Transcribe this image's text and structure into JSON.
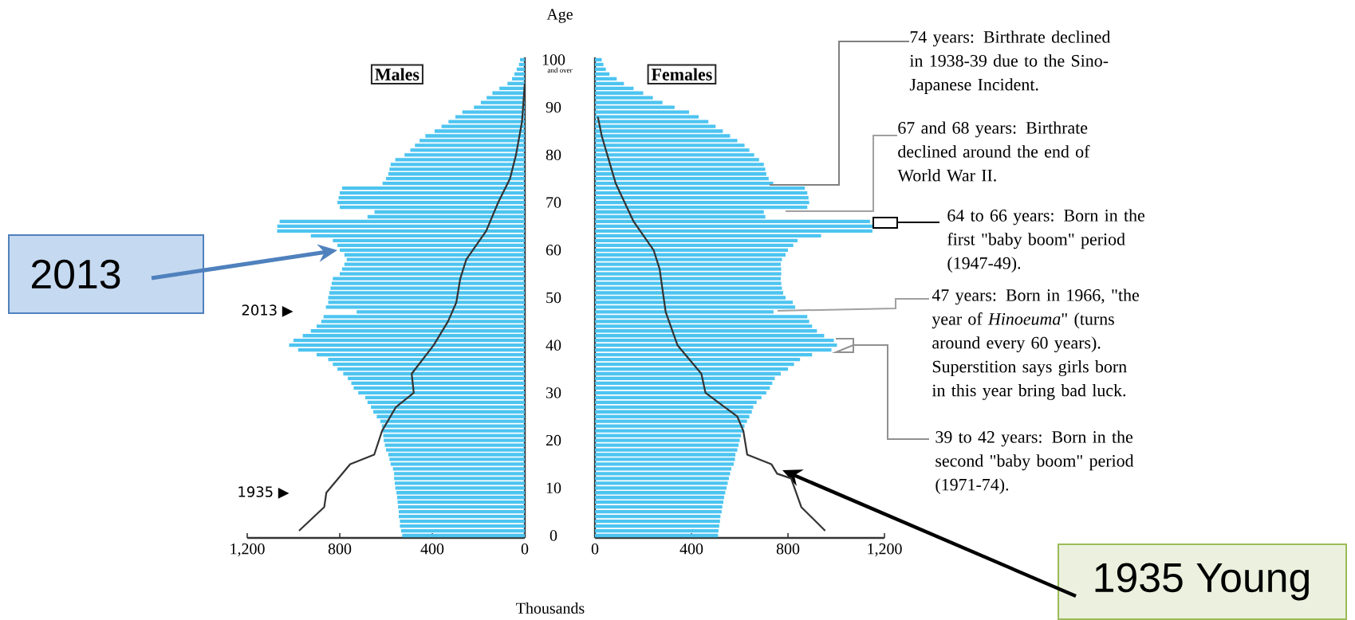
{
  "chart_data": [
    {
      "type": "bar",
      "orientation": "horizontal",
      "title": "Males",
      "ylabel": "Age",
      "xlabel": "Thousands",
      "x": [
        0,
        1,
        2,
        3,
        4,
        5,
        6,
        7,
        8,
        9,
        10,
        11,
        12,
        13,
        14,
        15,
        16,
        17,
        18,
        19,
        20,
        21,
        22,
        23,
        24,
        25,
        26,
        27,
        28,
        29,
        30,
        31,
        32,
        33,
        34,
        35,
        36,
        37,
        38,
        39,
        40,
        41,
        42,
        43,
        44,
        45,
        46,
        47,
        48,
        49,
        50,
        51,
        52,
        53,
        54,
        55,
        56,
        57,
        58,
        59,
        60,
        61,
        62,
        63,
        64,
        65,
        66,
        67,
        68,
        69,
        70,
        71,
        72,
        73,
        74,
        75,
        76,
        77,
        78,
        79,
        80,
        81,
        82,
        83,
        84,
        85,
        86,
        87,
        88,
        89,
        90,
        91,
        92,
        93,
        94,
        95,
        96,
        97,
        98,
        99,
        100
      ],
      "xlim": [
        1200,
        0
      ],
      "xticks": [
        {
          "value": 1200,
          "label": "1,200"
        },
        800,
        400,
        0
      ],
      "ylim": [
        -0.5,
        100.5
      ],
      "yticks": [
        0,
        10,
        20,
        30,
        40,
        50,
        60,
        70,
        80,
        90,
        100
      ],
      "series": [
        {
          "color": "#4dc4f0",
          "values": [
            530,
            535,
            540,
            540,
            545,
            545,
            548,
            550,
            552,
            555,
            560,
            562,
            565,
            565,
            570,
            580,
            585,
            590,
            600,
            605,
            610,
            612,
            615,
            618,
            625,
            640,
            655,
            665,
            680,
            690,
            720,
            740,
            750,
            765,
            785,
            810,
            830,
            850,
            900,
            980,
            1019,
            1000,
            960,
            925,
            900,
            880,
            870,
            727,
            860,
            850,
            850,
            845,
            840,
            835,
            830,
            800,
            790,
            780,
            770,
            780,
            800,
            810,
            830,
            925,
            1071,
            1070,
            1060,
            680,
            650,
            800,
            810,
            805,
            800,
            790,
            615,
            600,
            590,
            585,
            580,
            560,
            520,
            495,
            475,
            455,
            430,
            390,
            360,
            330,
            300,
            270,
            220,
            190,
            165,
            140,
            110,
            75,
            55,
            45,
            35,
            25,
            20
          ]
        },
        {
          "type": "line",
          "color": "#333333",
          "x": [
            1,
            6,
            9,
            15,
            17,
            22,
            27,
            30,
            34,
            40,
            45,
            49,
            54,
            58,
            64,
            70,
            75,
            80,
            87,
            95
          ],
          "values": [
            976,
            867,
            858,
            755,
            651,
            617,
            557,
            480,
            489,
            394,
            332,
            296,
            279,
            253,
            167,
            115,
            64,
            38,
            12,
            0
          ]
        }
      ],
      "annotations": [
        "2013 ▶",
        "1935 ▶",
        "2013",
        "1935 Young",
        "and over"
      ]
    },
    {
      "type": "bar",
      "orientation": "horizontal",
      "title": "Females",
      "tick_labels": "x",
      "x": [
        0,
        1,
        2,
        3,
        4,
        5,
        6,
        7,
        8,
        9,
        10,
        11,
        12,
        13,
        14,
        15,
        16,
        17,
        18,
        19,
        20,
        21,
        22,
        23,
        24,
        25,
        26,
        27,
        28,
        29,
        30,
        31,
        32,
        33,
        34,
        35,
        36,
        37,
        38,
        39,
        40,
        41,
        42,
        43,
        44,
        45,
        46,
        47,
        48,
        49,
        50,
        51,
        52,
        53,
        54,
        55,
        56,
        57,
        58,
        59,
        60,
        61,
        62,
        63,
        64,
        65,
        66,
        67,
        68,
        69,
        70,
        71,
        72,
        73,
        74,
        75,
        76,
        77,
        78,
        79,
        80,
        81,
        82,
        83,
        84,
        85,
        86,
        87,
        88,
        89,
        90,
        91,
        92,
        93,
        94,
        95,
        96,
        97,
        98,
        99,
        100
      ],
      "xlim": [
        0,
        1200
      ],
      "xticks": [
        0,
        400,
        800,
        {
          "value": 1200,
          "label": "1,200"
        }
      ],
      "ylim": [
        -0.5,
        100.5
      ],
      "yticks": [
        0,
        10,
        20,
        30,
        40,
        50,
        60,
        70,
        80,
        90,
        100
      ],
      "series": [
        {
          "color": "#4dc4f0",
          "values": [
            510,
            512,
            515,
            518,
            520,
            525,
            528,
            532,
            535,
            540,
            545,
            550,
            555,
            560,
            565,
            575,
            580,
            582,
            590,
            595,
            600,
            605,
            615,
            620,
            630,
            640,
            650,
            656,
            670,
            690,
            710,
            725,
            735,
            745,
            770,
            800,
            825,
            850,
            900,
            980,
            1003,
            990,
            950,
            920,
            900,
            888,
            880,
            740,
            830,
            820,
            790,
            780,
            775,
            772,
            770,
            772,
            772,
            770,
            775,
            790,
            800,
            822,
            840,
            937,
            1150,
            1152,
            1140,
            706,
            700,
            880,
            888,
            885,
            880,
            870,
            739,
            720,
            710,
            706,
            700,
            680,
            660,
            640,
            620,
            590,
            560,
            530,
            500,
            470,
            430,
            390,
            330,
            280,
            240,
            200,
            160,
            120,
            90,
            60,
            45,
            35,
            28
          ]
        },
        {
          "type": "line",
          "color": "#333333",
          "x": [
            1,
            6,
            12,
            13,
            15,
            17,
            22,
            25,
            30,
            34,
            40,
            47,
            56,
            60,
            66,
            74,
            84,
            88
          ],
          "values": [
            954,
            855,
            813,
            755,
            731,
            631,
            615,
            590,
            458,
            441,
            342,
            293,
            268,
            243,
            160,
            86,
            28,
            12
          ]
        }
      ],
      "annotations": [
        "74 years: Birthrate declined in 1938-39 due to the Sino-Japanese Incident.",
        "67 and 68 years: Birthrate declined around the end of World War II.",
        "64 to 66 years: Born in the first \"baby boom\" period (1947-49).",
        "47 years: Born in 1966, \"the year of *Hinoeuma*\" (turns around every 60 years). Superstition says girls born in this year bring bad luck.",
        "39 to 42 years: Born in the second \"baby boom\" period (1971-74)."
      ]
    }
  ]
}
